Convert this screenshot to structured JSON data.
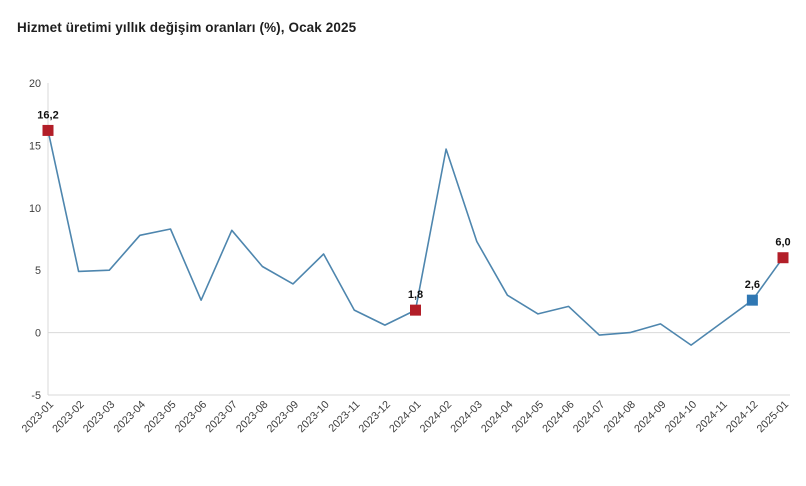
{
  "title": "Hizmet üretimi yıllık değişim oranları (%), Ocak 2025",
  "colors": {
    "background": "#ffffff",
    "line": "#4e86ae",
    "marker_red": "#b21e28",
    "marker_blue": "#2f77b3",
    "grid": "#d9d9d9",
    "tick_text": "#3f3f3f",
    "title_text": "#1f1f1f",
    "point_label_text": "#111111"
  },
  "chart_data": {
    "type": "line",
    "title": "Hizmet üretimi yıllık değişim oranları (%), Ocak 2025",
    "xlabel": "",
    "ylabel": "",
    "ylim": [
      -5,
      20
    ],
    "yticks": [
      20,
      15,
      10,
      5,
      0,
      -5
    ],
    "grid": "horizontal line at 0 and bottom border only",
    "legend": "none",
    "categories": [
      "2023-01",
      "2023-02",
      "2023-03",
      "2023-04",
      "2023-05",
      "2023-06",
      "2023-07",
      "2023-08",
      "2023-09",
      "2023-10",
      "2023-11",
      "2023-12",
      "2024-01",
      "2024-02",
      "2024-03",
      "2024-04",
      "2024-05",
      "2024-06",
      "2024-07",
      "2024-08",
      "2024-09",
      "2024-10",
      "2024-11",
      "2024-12",
      "2025-01"
    ],
    "values": [
      16.2,
      4.9,
      5.0,
      7.8,
      8.3,
      2.6,
      8.2,
      5.3,
      3.9,
      6.3,
      1.8,
      0.6,
      1.8,
      14.7,
      7.3,
      3.0,
      1.5,
      2.1,
      -0.2,
      0.0,
      0.7,
      -1.0,
      0.8,
      2.6,
      6.0
    ],
    "annotations": [
      {
        "index": 0,
        "label": "16,2",
        "marker": "red"
      },
      {
        "index": 12,
        "label": "1,8",
        "marker": "red"
      },
      {
        "index": 23,
        "label": "2,6",
        "marker": "blue"
      },
      {
        "index": 24,
        "label": "6,0",
        "marker": "red"
      }
    ]
  }
}
